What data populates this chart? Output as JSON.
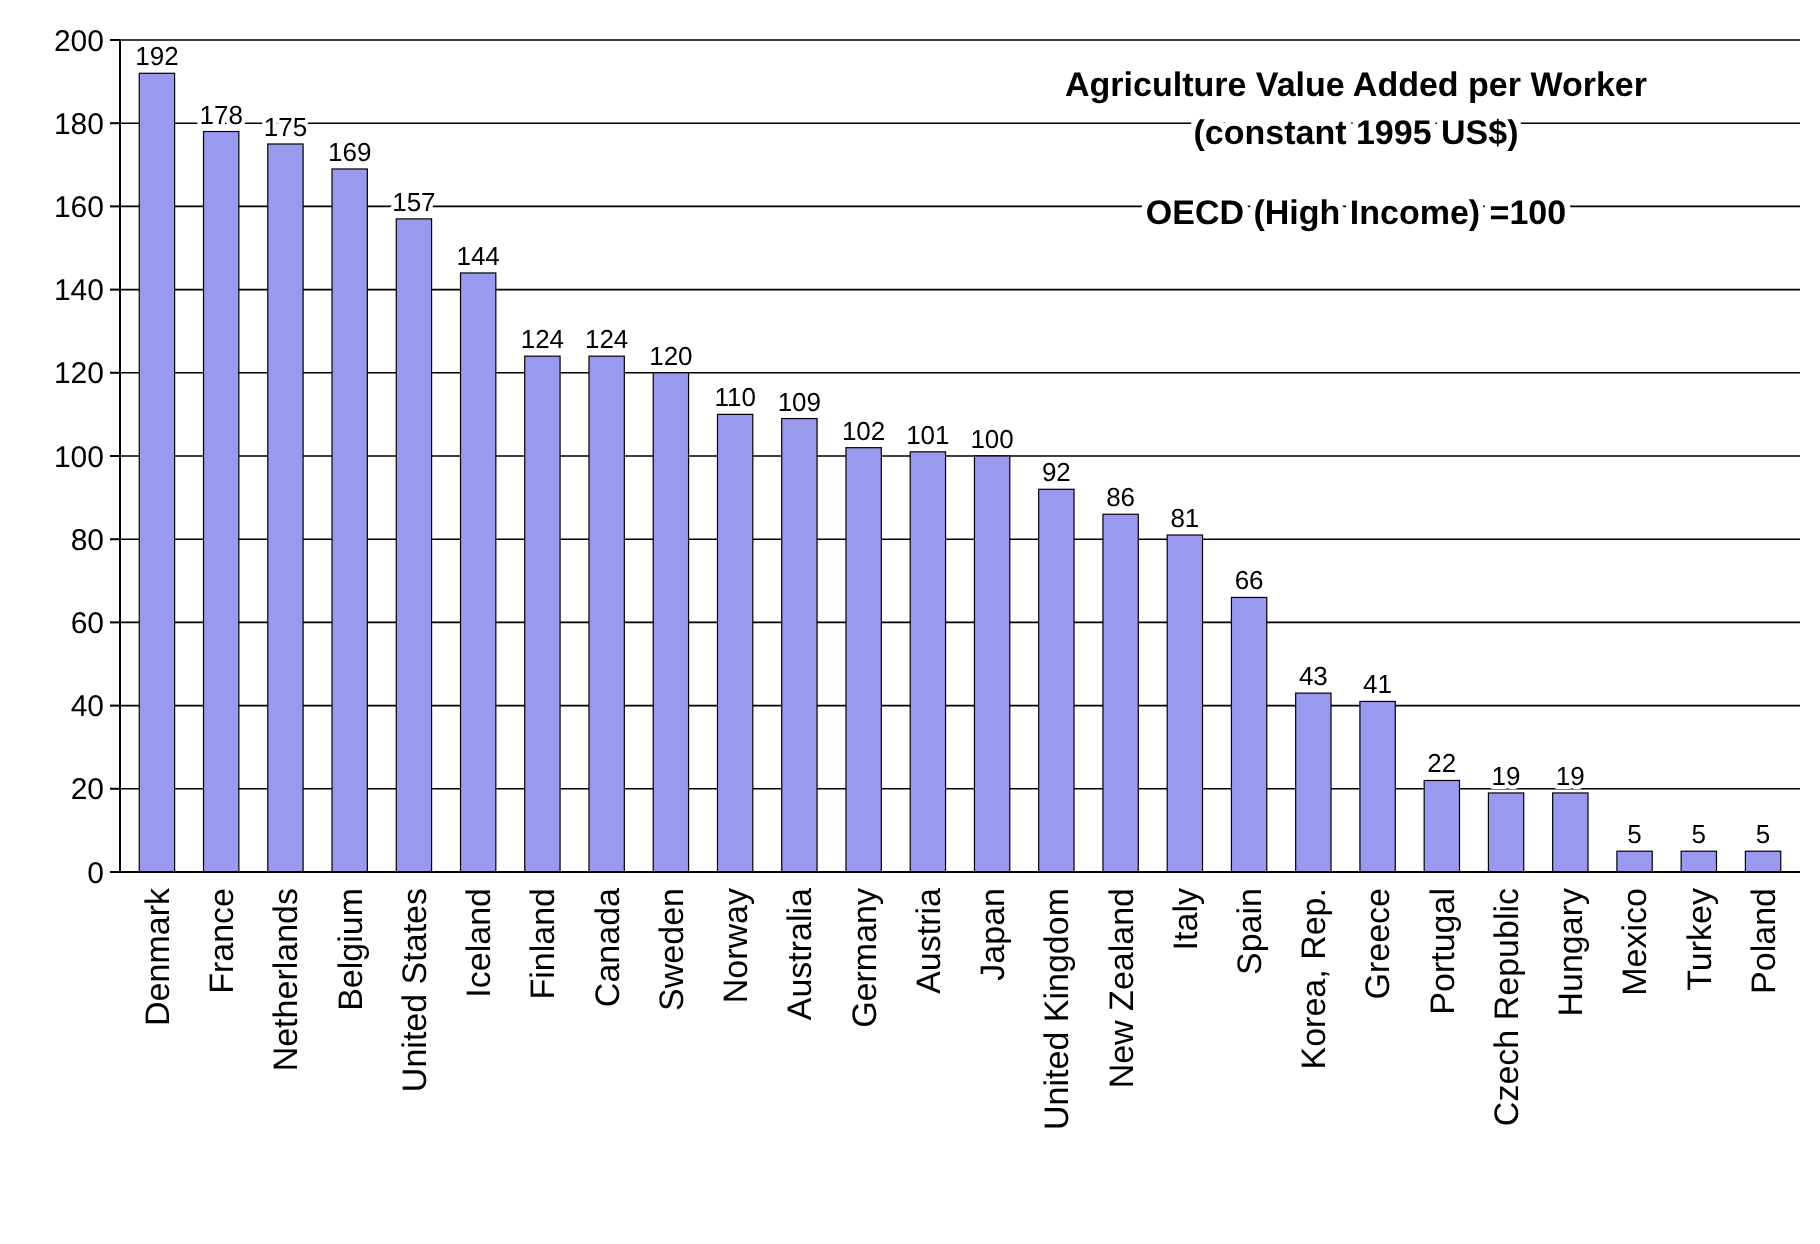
{
  "chart_data": {
    "type": "bar",
    "title": "Agriculture Value Added per Worker\n(constant 1995 US$)",
    "subtitle": "OECD (High Income) =100",
    "categories": [
      "Denmark",
      "France",
      "Netherlands",
      "Belgium",
      "United States",
      "Iceland",
      "Finland",
      "Canada",
      "Sweden",
      "Norway",
      "Australia",
      "Germany",
      "Austria",
      "Japan",
      "United Kingdom",
      "New Zealand",
      "Italy",
      "Spain",
      "Korea, Rep.",
      "Greece",
      "Portugal",
      "Czech Republic",
      "Hungary",
      "Mexico",
      "Turkey",
      "Poland"
    ],
    "values": [
      192,
      178,
      175,
      169,
      157,
      144,
      124,
      124,
      120,
      110,
      109,
      102,
      101,
      100,
      92,
      86,
      81,
      66,
      43,
      41,
      22,
      19,
      19,
      5,
      5,
      5
    ],
    "color": "#9999ee",
    "ylim": [
      0,
      200
    ],
    "yticks": [
      0,
      20,
      40,
      60,
      80,
      100,
      120,
      140,
      160,
      180,
      200
    ],
    "grid": "y",
    "data_labels": true
  }
}
